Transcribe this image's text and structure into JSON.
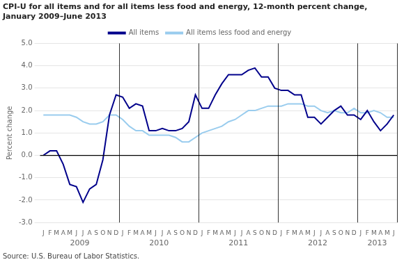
{
  "chart_data": {
    "type": "line",
    "title": [
      "CPI-U for all items and for all items less food and energy, 12-month percent change,",
      "January 2009–June 2013"
    ],
    "y_label": "Percent change",
    "source": "Source: U.S. Bureau of Labor Statistics.",
    "categories": [
      "J",
      "F",
      "M",
      "A",
      "M",
      "J",
      "J",
      "A",
      "S",
      "O",
      "N",
      "D",
      "J",
      "F",
      "M",
      "A",
      "M",
      "J",
      "J",
      "A",
      "S",
      "O",
      "N",
      "D",
      "J",
      "F",
      "M",
      "A",
      "M",
      "J",
      "J",
      "A",
      "S",
      "O",
      "N",
      "D",
      "J",
      "F",
      "M",
      "A",
      "M",
      "J",
      "J",
      "A",
      "S",
      "O",
      "N",
      "D",
      "J",
      "F",
      "M",
      "A",
      "M",
      "J"
    ],
    "groups": [
      {
        "label": "2009",
        "start": 0,
        "count": 12
      },
      {
        "label": "2010",
        "start": 12,
        "count": 12
      },
      {
        "label": "2011",
        "start": 24,
        "count": 12
      },
      {
        "label": "2012",
        "start": 36,
        "count": 12
      },
      {
        "label": "2013",
        "start": 48,
        "count": 6
      }
    ],
    "series": [
      {
        "name": "All items",
        "color": "#00008B",
        "values": [
          0.0,
          0.2,
          0.2,
          -0.4,
          -1.3,
          -1.4,
          -2.1,
          -1.5,
          -1.3,
          -0.2,
          1.8,
          2.7,
          2.6,
          2.1,
          2.3,
          2.2,
          1.1,
          1.1,
          1.2,
          1.1,
          1.1,
          1.2,
          1.5,
          2.7,
          2.1,
          2.1,
          2.7,
          3.2,
          3.6,
          3.6,
          3.6,
          3.8,
          3.9,
          3.5,
          3.5,
          3.0,
          2.9,
          2.9,
          2.7,
          2.7,
          1.7,
          1.7,
          1.4,
          1.7,
          2.0,
          2.2,
          1.8,
          1.8,
          1.6,
          2.0,
          1.5,
          1.1,
          1.4,
          1.8
        ]
      },
      {
        "name": "All items less food and energy",
        "color": "#99CCEE",
        "values": [
          1.8,
          1.8,
          1.8,
          1.8,
          1.8,
          1.7,
          1.5,
          1.4,
          1.4,
          1.5,
          1.8,
          1.8,
          1.6,
          1.3,
          1.1,
          1.1,
          0.9,
          0.9,
          0.9,
          0.9,
          0.8,
          0.6,
          0.6,
          0.8,
          1.0,
          1.1,
          1.2,
          1.3,
          1.5,
          1.6,
          1.8,
          2.0,
          2.0,
          2.1,
          2.2,
          2.2,
          2.2,
          2.3,
          2.3,
          2.3,
          2.2,
          2.2,
          2.0,
          1.9,
          2.0,
          1.9,
          1.9,
          2.1,
          1.9,
          1.9,
          2.0,
          1.9,
          1.7,
          1.7
        ]
      }
    ],
    "ylim": [
      -3.0,
      5.0
    ],
    "yticks": [
      {
        "value": -3,
        "label": "-3.0"
      },
      {
        "value": -2,
        "label": "-2.0"
      },
      {
        "value": -1,
        "label": "-1.0"
      },
      {
        "value": 0,
        "label": "0.0"
      },
      {
        "value": 1,
        "label": "1.0"
      },
      {
        "value": 2,
        "label": "2.0"
      },
      {
        "value": 3,
        "label": "3.0"
      },
      {
        "value": 4,
        "label": "4.0"
      },
      {
        "value": 5,
        "label": "5.0"
      }
    ],
    "grid": true,
    "legend": "top"
  }
}
